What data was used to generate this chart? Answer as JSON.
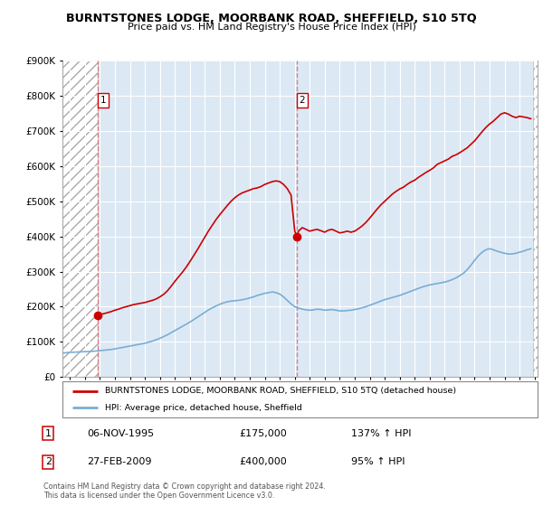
{
  "title": "BURNTSTONES LODGE, MOORBANK ROAD, SHEFFIELD, S10 5TQ",
  "subtitle": "Price paid vs. HM Land Registry's House Price Index (HPI)",
  "legend_line1": "BURNTSTONES LODGE, MOORBANK ROAD, SHEFFIELD, S10 5TQ (detached house)",
  "legend_line2": "HPI: Average price, detached house, Sheffield",
  "transaction1_date": "06-NOV-1995",
  "transaction1_price": "£175,000",
  "transaction1_hpi": "137% ↑ HPI",
  "transaction1_x": 1995.85,
  "transaction1_y": 175000,
  "transaction2_date": "27-FEB-2009",
  "transaction2_price": "£400,000",
  "transaction2_hpi": "95% ↑ HPI",
  "transaction2_x": 2009.15,
  "transaction2_y": 400000,
  "footer": "Contains HM Land Registry data © Crown copyright and database right 2024.\nThis data is licensed under the Open Government Licence v3.0.",
  "property_color": "#cc0000",
  "hpi_color": "#7aadd4",
  "vline_color": "#e87070",
  "bg_blue": "#dce9f5",
  "ylim": [
    0,
    900000
  ],
  "yticks": [
    0,
    100000,
    200000,
    300000,
    400000,
    500000,
    600000,
    700000,
    800000,
    900000
  ],
  "xmin": 1993.5,
  "xmax": 2025.2,
  "hatch_end": 1995.85,
  "hatch_start_right": 2025.0,
  "property_line_x": [
    1995.85,
    1996.0,
    1996.25,
    1996.5,
    1996.75,
    1997.0,
    1997.25,
    1997.5,
    1997.75,
    1998.0,
    1998.25,
    1998.5,
    1998.75,
    1999.0,
    1999.25,
    1999.5,
    1999.75,
    2000.0,
    2000.25,
    2000.5,
    2000.75,
    2001.0,
    2001.25,
    2001.5,
    2001.75,
    2002.0,
    2002.25,
    2002.5,
    2002.75,
    2003.0,
    2003.25,
    2003.5,
    2003.75,
    2004.0,
    2004.25,
    2004.5,
    2004.75,
    2005.0,
    2005.25,
    2005.5,
    2005.75,
    2006.0,
    2006.25,
    2006.5,
    2006.75,
    2007.0,
    2007.25,
    2007.5,
    2007.75,
    2008.0,
    2008.25,
    2008.5,
    2008.75,
    2009.0,
    2009.15,
    2009.25,
    2009.5,
    2009.75,
    2010.0,
    2010.25,
    2010.5,
    2010.75,
    2011.0,
    2011.25,
    2011.5,
    2011.75,
    2012.0,
    2012.25,
    2012.5,
    2012.75,
    2013.0,
    2013.25,
    2013.5,
    2013.75,
    2014.0,
    2014.25,
    2014.5,
    2014.75,
    2015.0,
    2015.25,
    2015.5,
    2015.75,
    2016.0,
    2016.25,
    2016.5,
    2016.75,
    2017.0,
    2017.25,
    2017.5,
    2017.75,
    2018.0,
    2018.25,
    2018.5,
    2018.75,
    2019.0,
    2019.25,
    2019.5,
    2019.75,
    2020.0,
    2020.25,
    2020.5,
    2020.75,
    2021.0,
    2021.25,
    2021.5,
    2021.75,
    2022.0,
    2022.25,
    2022.5,
    2022.75,
    2023.0,
    2023.25,
    2023.5,
    2023.75,
    2024.0,
    2024.25,
    2024.5,
    2024.75
  ],
  "property_line_y": [
    175000,
    178000,
    180000,
    183000,
    186000,
    190000,
    193000,
    197000,
    200000,
    203000,
    206000,
    208000,
    210000,
    212000,
    215000,
    218000,
    222000,
    228000,
    235000,
    245000,
    258000,
    272000,
    285000,
    298000,
    312000,
    328000,
    345000,
    362000,
    380000,
    398000,
    416000,
    432000,
    448000,
    462000,
    475000,
    488000,
    500000,
    510000,
    518000,
    524000,
    528000,
    532000,
    536000,
    538000,
    542000,
    548000,
    552000,
    556000,
    558000,
    556000,
    548000,
    536000,
    518000,
    415000,
    400000,
    415000,
    425000,
    420000,
    415000,
    418000,
    420000,
    416000,
    412000,
    418000,
    420000,
    415000,
    410000,
    412000,
    415000,
    412000,
    415000,
    422000,
    430000,
    440000,
    452000,
    465000,
    478000,
    490000,
    500000,
    510000,
    520000,
    528000,
    535000,
    540000,
    548000,
    555000,
    560000,
    568000,
    575000,
    582000,
    588000,
    595000,
    605000,
    610000,
    615000,
    620000,
    628000,
    632000,
    638000,
    645000,
    652000,
    662000,
    672000,
    685000,
    698000,
    710000,
    720000,
    728000,
    738000,
    748000,
    752000,
    748000,
    742000,
    738000,
    742000,
    740000,
    738000,
    735000
  ],
  "hpi_line_x": [
    1993.5,
    1993.75,
    1994.0,
    1994.25,
    1994.5,
    1994.75,
    1995.0,
    1995.25,
    1995.5,
    1995.75,
    1996.0,
    1996.25,
    1996.5,
    1996.75,
    1997.0,
    1997.25,
    1997.5,
    1997.75,
    1998.0,
    1998.25,
    1998.5,
    1998.75,
    1999.0,
    1999.25,
    1999.5,
    1999.75,
    2000.0,
    2000.25,
    2000.5,
    2000.75,
    2001.0,
    2001.25,
    2001.5,
    2001.75,
    2002.0,
    2002.25,
    2002.5,
    2002.75,
    2003.0,
    2003.25,
    2003.5,
    2003.75,
    2004.0,
    2004.25,
    2004.5,
    2004.75,
    2005.0,
    2005.25,
    2005.5,
    2005.75,
    2006.0,
    2006.25,
    2006.5,
    2006.75,
    2007.0,
    2007.25,
    2007.5,
    2007.75,
    2008.0,
    2008.25,
    2008.5,
    2008.75,
    2009.0,
    2009.25,
    2009.5,
    2009.75,
    2010.0,
    2010.25,
    2010.5,
    2010.75,
    2011.0,
    2011.25,
    2011.5,
    2011.75,
    2012.0,
    2012.25,
    2012.5,
    2012.75,
    2013.0,
    2013.25,
    2013.5,
    2013.75,
    2014.0,
    2014.25,
    2014.5,
    2014.75,
    2015.0,
    2015.25,
    2015.5,
    2015.75,
    2016.0,
    2016.25,
    2016.5,
    2016.75,
    2017.0,
    2017.25,
    2017.5,
    2017.75,
    2018.0,
    2018.25,
    2018.5,
    2018.75,
    2019.0,
    2019.25,
    2019.5,
    2019.75,
    2020.0,
    2020.25,
    2020.5,
    2020.75,
    2021.0,
    2021.25,
    2021.5,
    2021.75,
    2022.0,
    2022.25,
    2022.5,
    2022.75,
    2023.0,
    2023.25,
    2023.5,
    2023.75,
    2024.0,
    2024.25,
    2024.5,
    2024.75
  ],
  "hpi_line_y": [
    68000,
    69000,
    70000,
    70500,
    71000,
    71500,
    72000,
    72500,
    73000,
    74000,
    75000,
    76000,
    77000,
    78000,
    80000,
    82000,
    84000,
    86000,
    88000,
    90000,
    92000,
    94000,
    96000,
    99000,
    102000,
    106000,
    110000,
    115000,
    120000,
    126000,
    132000,
    138000,
    144000,
    150000,
    156000,
    163000,
    170000,
    177000,
    184000,
    191000,
    197000,
    202000,
    207000,
    211000,
    214000,
    216000,
    217000,
    218000,
    220000,
    222000,
    225000,
    228000,
    232000,
    235000,
    238000,
    240000,
    242000,
    240000,
    236000,
    228000,
    218000,
    208000,
    200000,
    196000,
    193000,
    191000,
    190000,
    191000,
    193000,
    192000,
    190000,
    191000,
    192000,
    190000,
    188000,
    188000,
    189000,
    190000,
    192000,
    194000,
    197000,
    200000,
    204000,
    208000,
    212000,
    216000,
    220000,
    223000,
    226000,
    229000,
    232000,
    236000,
    240000,
    244000,
    248000,
    252000,
    256000,
    259000,
    262000,
    264000,
    266000,
    268000,
    270000,
    273000,
    277000,
    282000,
    288000,
    295000,
    305000,
    318000,
    332000,
    345000,
    355000,
    362000,
    365000,
    362000,
    358000,
    355000,
    352000,
    350000,
    350000,
    352000,
    355000,
    358000,
    362000,
    365000
  ]
}
